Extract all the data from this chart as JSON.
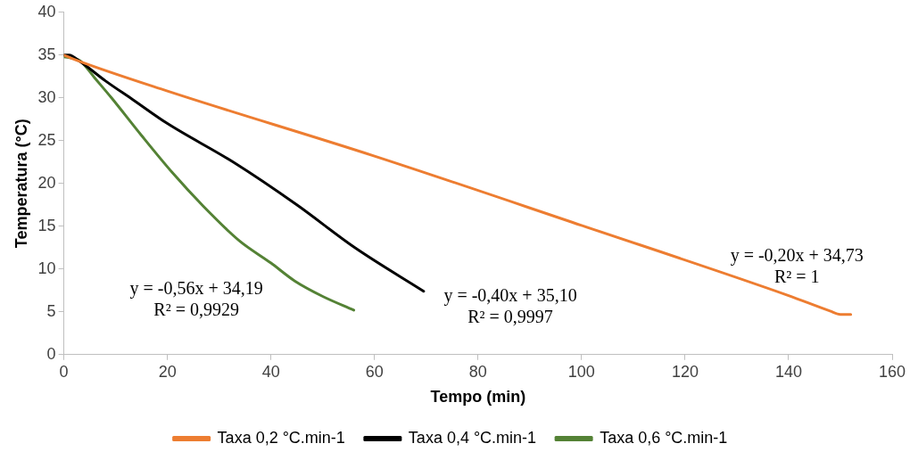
{
  "chart_data": {
    "type": "line",
    "xlabel": "Tempo (min)",
    "ylabel": "Temperatura (°C)",
    "xlim": [
      0,
      160
    ],
    "xticks": [
      0,
      20,
      40,
      60,
      80,
      100,
      120,
      140,
      160
    ],
    "ylim": [
      0,
      40
    ],
    "yticks": [
      0,
      5,
      10,
      15,
      20,
      25,
      30,
      35,
      40
    ],
    "grid": false,
    "legend": "bottom",
    "marker": "none",
    "line_style": "solid",
    "series": [
      {
        "name": "Taxa 0,2 °C.min-1",
        "color": "#ed7d31",
        "x": [
          0,
          2,
          20,
          60,
          100,
          140,
          148,
          150,
          152
        ],
        "values": [
          35,
          34.5,
          30.8,
          23.2,
          15.1,
          6.9,
          5.1,
          4.7,
          4.7
        ]
      },
      {
        "name": "Taxa 0,4 °C.min-1",
        "color": "#000000",
        "x": [
          0,
          1,
          3,
          8,
          13.3,
          20,
          32.7,
          45,
          56.2,
          69.5
        ],
        "values": [
          35,
          35,
          34.3,
          32,
          29.8,
          27,
          22.5,
          17.5,
          12.5,
          7.4
        ]
      },
      {
        "name": "Taxa 0,6 °C.min-1",
        "color": "#548235",
        "x": [
          0,
          2,
          3.2,
          6,
          9.2,
          15,
          20.9,
          27,
          33.9,
          40,
          44.6,
          50,
          56
        ],
        "values": [
          34.8,
          34.6,
          34.3,
          32.3,
          30,
          25.6,
          21.3,
          17.3,
          13.3,
          10.7,
          8.6,
          6.8,
          5.2
        ]
      }
    ],
    "annotations": [
      "y = -0,56x + 34,19\nR² = 0,9929",
      "y = -0,40x + 35,10\nR² = 0,9997",
      "y = -0,20x + 34,73\nR² = 1"
    ]
  }
}
